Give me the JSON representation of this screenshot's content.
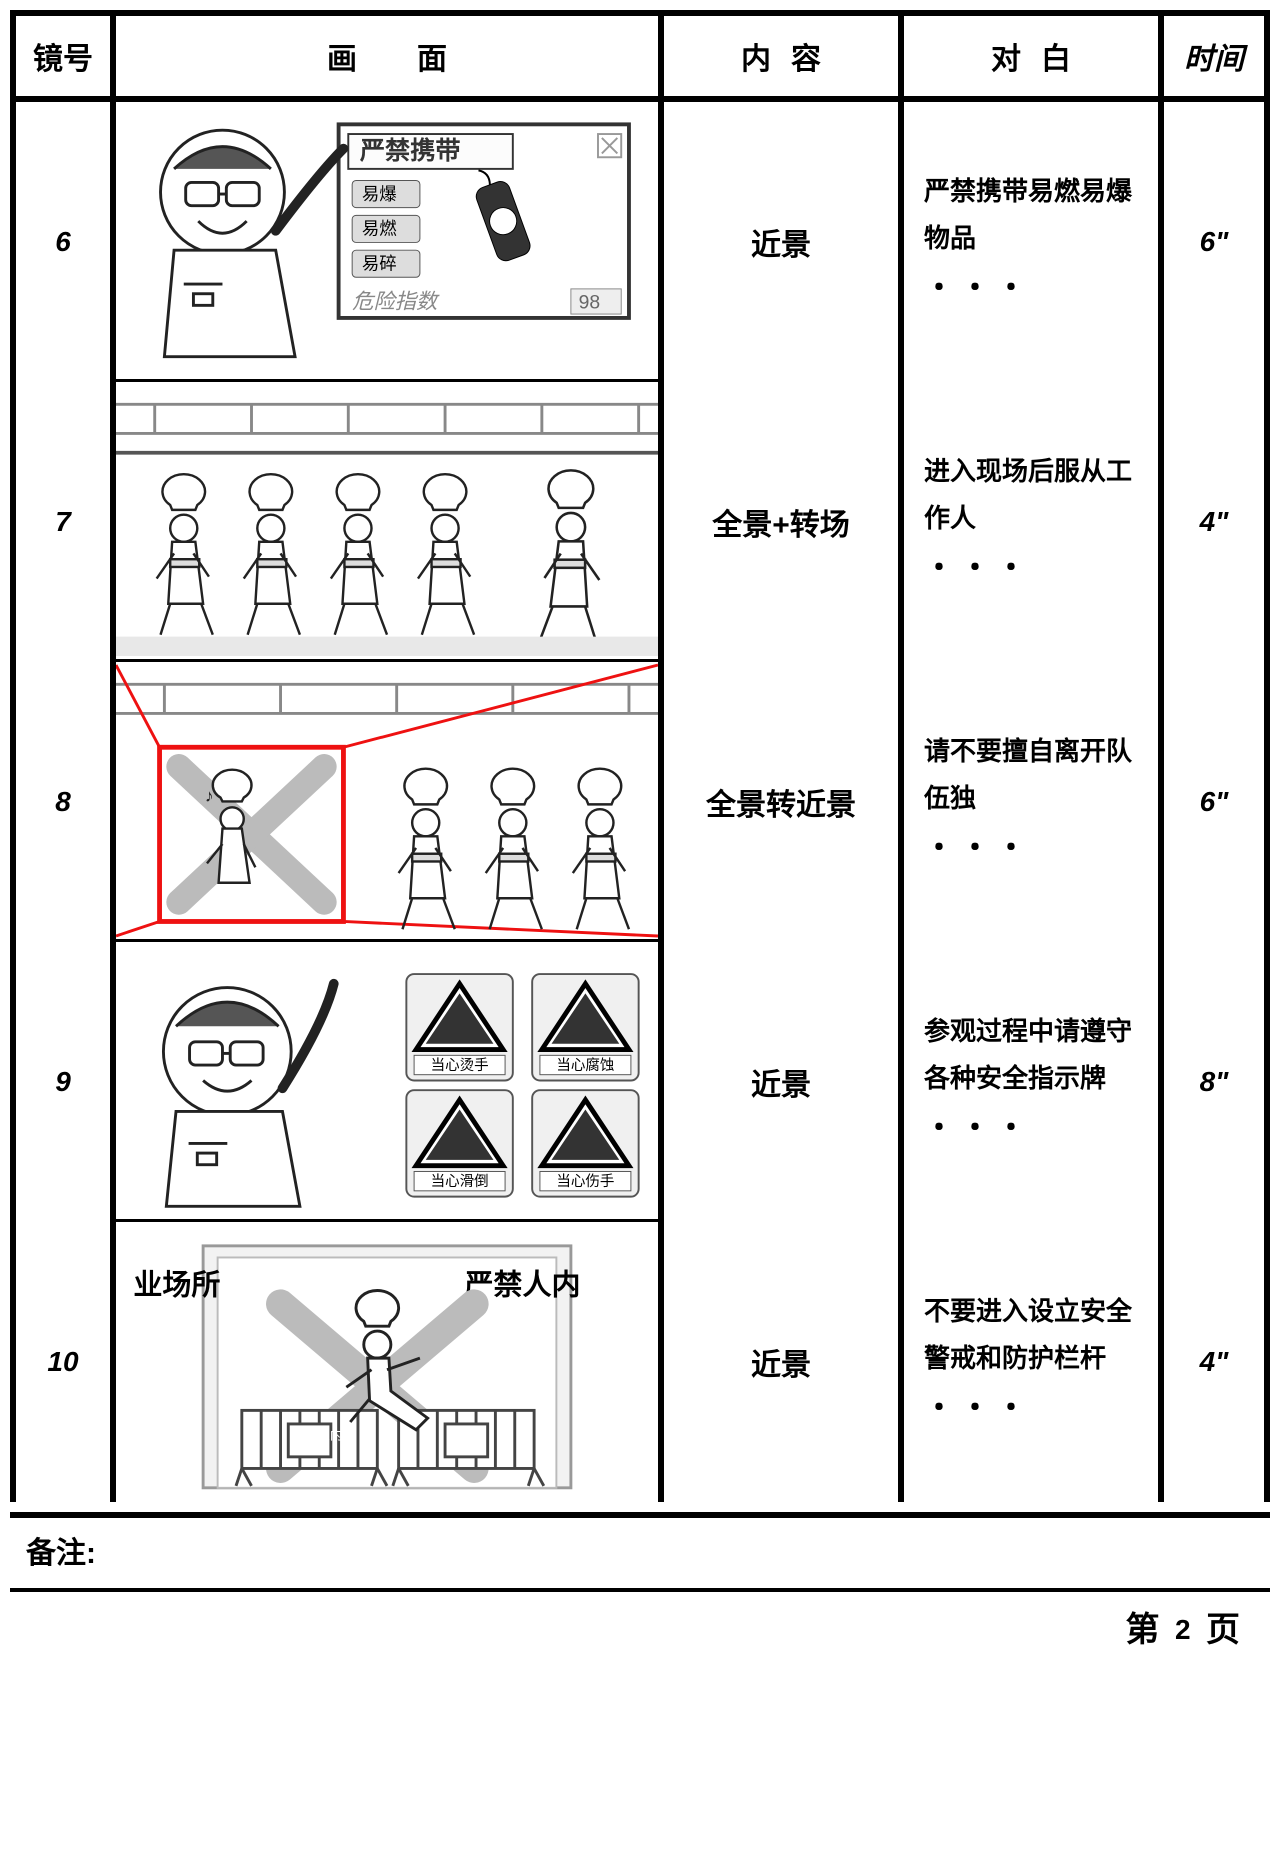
{
  "header": {
    "shot": "镜号",
    "picture": "画面",
    "content": "内容",
    "dialog": "对白",
    "time": "时间"
  },
  "rows": [
    {
      "shot": "6",
      "content": "近景",
      "dialog": "严禁携带易燃易爆物品",
      "time": "6\""
    },
    {
      "shot": "7",
      "content": "全景+转场",
      "dialog": "进入现场后服从工作人",
      "time": "4\""
    },
    {
      "shot": "8",
      "content": "全景转近景",
      "dialog": "请不要擅自离开队伍独",
      "time": "6\""
    },
    {
      "shot": "9",
      "content": "近景",
      "dialog": "参观过程中请遵守各种安全指示牌",
      "time": "8\""
    },
    {
      "shot": "10",
      "content": "近景",
      "dialog": "不要进入设立安全警戒和防护栏杆",
      "time": "4\""
    }
  ],
  "panels": {
    "p6": {
      "board_title": "严禁携带",
      "tags": [
        "易爆",
        "易燃",
        "易碎"
      ],
      "footer": "危险指数",
      "footer_val": "98"
    },
    "p9": {
      "signs": [
        "当心烫手",
        "当心腐蚀",
        "当心滑倒",
        "当心伤手"
      ]
    },
    "p10": {
      "left": "业场所",
      "right": "严禁人内",
      "fence": "严禁入内"
    }
  },
  "notes_label": "备注:",
  "page_label_pre": "第",
  "page_number": "2",
  "page_label_post": "页",
  "style": {
    "border_color": "#000000",
    "highlight_color": "#e11",
    "stroke": "#222",
    "fill_light": "#f4f4f4",
    "fill_mid": "#bbb"
  }
}
